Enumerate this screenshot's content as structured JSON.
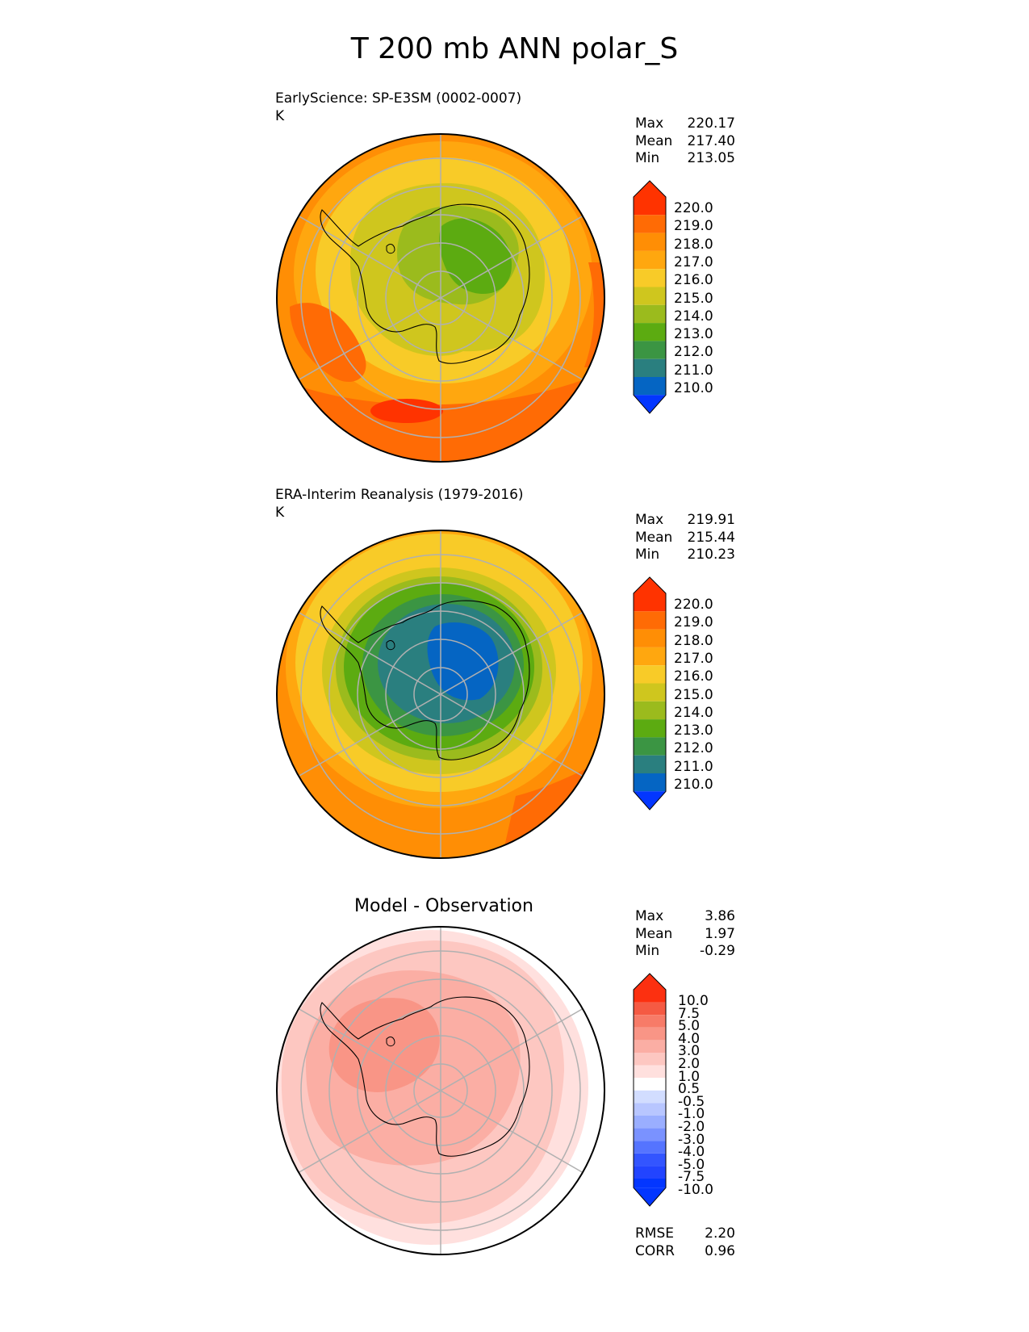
{
  "title": "T 200 mb ANN polar_S",
  "panels": [
    {
      "id": "model",
      "label_line1": "EarlyScience: SP-E3SM (0002-0007)",
      "units": "K",
      "stats": [
        {
          "name": "Max",
          "value": "220.17"
        },
        {
          "name": "Mean",
          "value": "217.40"
        },
        {
          "name": "Min",
          "value": "213.05"
        }
      ],
      "colorbar_ticks": [
        "220.0",
        "219.0",
        "218.0",
        "217.0",
        "216.0",
        "215.0",
        "214.0",
        "213.0",
        "212.0",
        "211.0",
        "210.0"
      ]
    },
    {
      "id": "obs",
      "label_line1": "ERA-Interim Reanalysis (1979-2016)",
      "units": "K",
      "stats": [
        {
          "name": "Max",
          "value": "219.91"
        },
        {
          "name": "Mean",
          "value": "215.44"
        },
        {
          "name": "Min",
          "value": "210.23"
        }
      ],
      "colorbar_ticks": [
        "220.0",
        "219.0",
        "218.0",
        "217.0",
        "216.0",
        "215.0",
        "214.0",
        "213.0",
        "212.0",
        "211.0",
        "210.0"
      ]
    },
    {
      "id": "diff",
      "title": "Model - Observation",
      "stats": [
        {
          "name": "Max",
          "value": "3.86"
        },
        {
          "name": "Mean",
          "value": "1.97"
        },
        {
          "name": "Min",
          "value": "-0.29"
        }
      ],
      "colorbar_ticks": [
        "10.0",
        "7.5",
        "5.0",
        "4.0",
        "3.0",
        "2.0",
        "1.0",
        "0.5",
        "-0.5",
        "-1.0",
        "-2.0",
        "-3.0",
        "-4.0",
        "-5.0",
        "-7.5",
        "-10.0"
      ],
      "metrics": [
        {
          "name": "RMSE",
          "value": "2.20"
        },
        {
          "name": "CORR",
          "value": "0.96"
        }
      ]
    }
  ],
  "colors": {
    "temp_scale": [
      "#0336ff",
      "#0565c3",
      "#2a7f7f",
      "#3b9543",
      "#5cab11",
      "#9bbb1d",
      "#cfc61e",
      "#f8cb28",
      "#ffa70f",
      "#ff8e05",
      "#ff6b05",
      "#ff3300"
    ],
    "diff_scale": [
      "#0336ff",
      "#3355ff",
      "#5574ff",
      "#7a92ff",
      "#9aaeff",
      "#b8c6ff",
      "#d2ddff",
      "#ffffff",
      "#ffe0de",
      "#fdc7c1",
      "#fbaea4",
      "#f99586",
      "#f77b68",
      "#f55a43",
      "#fc3010"
    ]
  }
}
